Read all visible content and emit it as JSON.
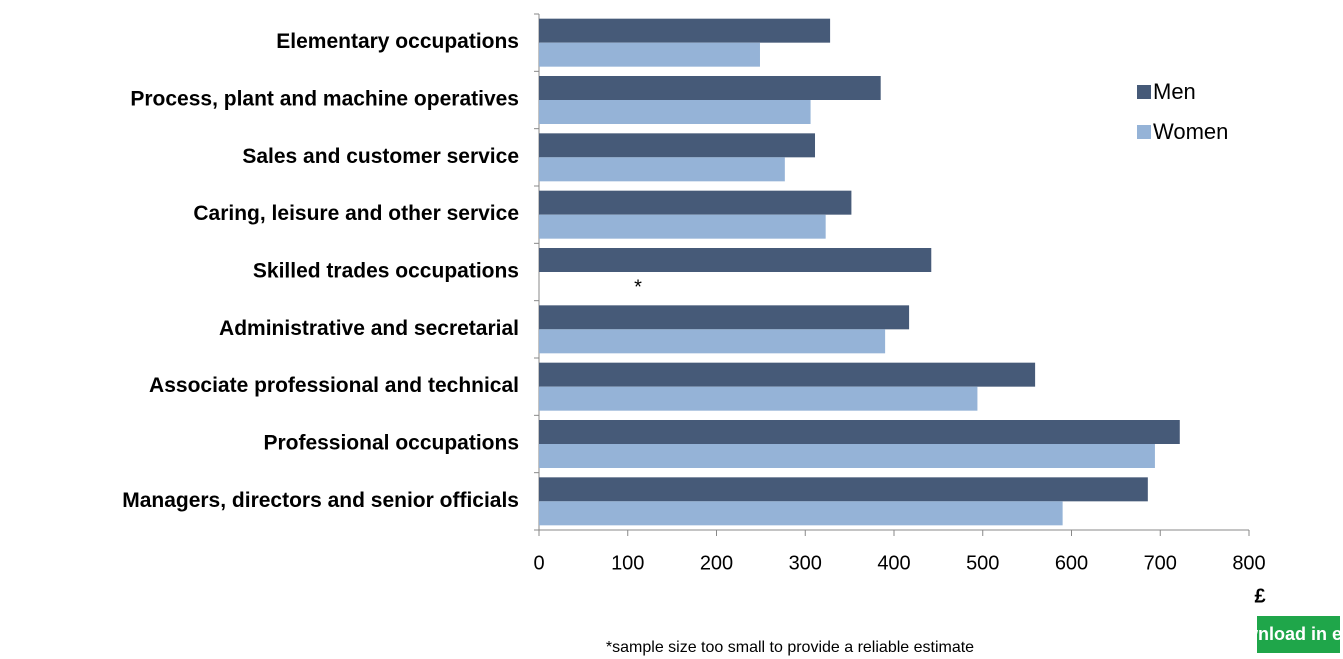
{
  "chart_data": {
    "type": "bar",
    "orientation": "horizontal",
    "categories": [
      "Elementary occupations",
      "Process, plant and machine operatives",
      "Sales and customer service",
      "Caring, leisure and other service",
      "Skilled trades occupations",
      "Administrative and secretarial",
      "Associate professional and technical",
      "Professional occupations",
      "Managers, directors and senior officials"
    ],
    "series": [
      {
        "name": "Men",
        "color": "#465a78",
        "values": [
          328,
          385,
          311,
          352,
          442,
          417,
          559,
          722,
          686
        ]
      },
      {
        "name": "Women",
        "color": "#95b3d7",
        "values": [
          249,
          306,
          277,
          323,
          null,
          390,
          494,
          694,
          590
        ]
      }
    ],
    "missing_marker": "*",
    "xlim": [
      0,
      800
    ],
    "xticks": [
      0,
      100,
      200,
      300,
      400,
      500,
      600,
      700,
      800
    ],
    "x_label": "£",
    "note": "*sample size too small to provide a reliable estimate",
    "legend": "right",
    "grid": false
  },
  "download_button": "Download in excel"
}
